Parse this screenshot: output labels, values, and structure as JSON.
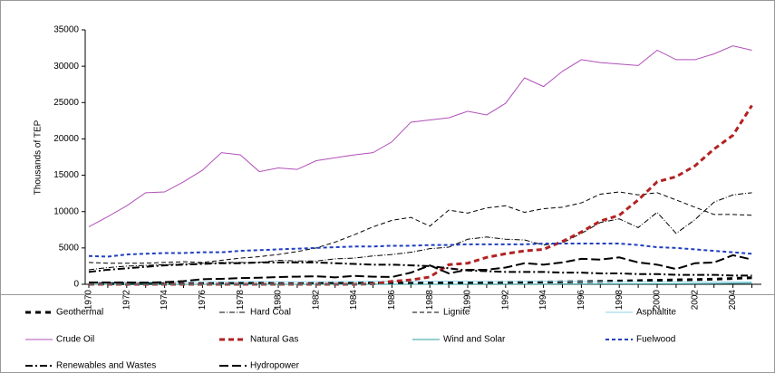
{
  "chart_data": {
    "type": "line",
    "y_label": "Thousands of TEP",
    "categories": [
      "1970",
      null,
      "1972",
      null,
      "1974",
      null,
      "1976",
      null,
      "1978",
      null,
      "1980",
      null,
      "1982",
      null,
      "1984",
      null,
      "1986",
      null,
      "1988",
      null,
      "1990",
      null,
      "1992",
      null,
      "1994",
      null,
      "1996",
      null,
      "1998",
      null,
      "2000",
      null,
      "2002",
      null,
      "2004",
      null
    ],
    "ylim": [
      0,
      35000
    ],
    "yticks": [
      0,
      5000,
      10000,
      15000,
      20000,
      25000,
      30000,
      35000
    ],
    "series": [
      {
        "name": "Geothermal",
        "color": "#000000",
        "width": 3,
        "dash": "6 5",
        "values": [
          50,
          60,
          70,
          80,
          90,
          100,
          110,
          120,
          130,
          140,
          150,
          160,
          170,
          180,
          190,
          200,
          210,
          220,
          230,
          240,
          250,
          260,
          280,
          300,
          320,
          340,
          360,
          400,
          450,
          500,
          550,
          600,
          650,
          700,
          800,
          900
        ]
      },
      {
        "name": "Hard Coal",
        "color": "#000000",
        "width": 1,
        "dash": "6 2 1 2",
        "values": [
          2000,
          2300,
          2500,
          2600,
          2700,
          2800,
          2900,
          3000,
          3000,
          3000,
          3300,
          3200,
          3200,
          3500,
          3600,
          3900,
          4100,
          4400,
          4900,
          5100,
          6200,
          6500,
          6200,
          6100,
          5400,
          5700,
          7000,
          8500,
          9000,
          7800,
          9900,
          7000,
          8900,
          11300,
          12300,
          12600
        ]
      },
      {
        "name": "Lignite",
        "color": "#000000",
        "width": 1,
        "dash": "5 3",
        "values": [
          3000,
          2900,
          2900,
          2900,
          3000,
          3100,
          3000,
          3300,
          3600,
          3800,
          4100,
          4500,
          5000,
          5800,
          6800,
          7900,
          8800,
          9200,
          8000,
          10200,
          9800,
          10500,
          10800,
          9900,
          10400,
          10600,
          11200,
          12400,
          12700,
          12300,
          12600,
          11600,
          10600,
          9600,
          9600,
          9500
        ]
      },
      {
        "name": "Asphaltite",
        "color": "#8fd3e8",
        "width": 1,
        "dash": "none",
        "values": [
          300,
          300,
          320,
          300,
          310,
          330,
          350,
          340,
          360,
          380,
          350,
          330,
          340,
          360,
          380,
          400,
          390,
          380,
          400,
          420,
          400,
          390,
          380,
          400,
          420,
          400,
          380,
          360,
          350,
          340,
          330,
          320,
          300,
          310,
          320,
          330
        ]
      },
      {
        "name": "Crude Oil",
        "color": "#b050b8",
        "width": 1,
        "dash": "none",
        "values": [
          7900,
          9300,
          10800,
          12600,
          12700,
          14100,
          15700,
          18100,
          17800,
          15500,
          16000,
          15800,
          17000,
          17400,
          17800,
          18100,
          19600,
          22300,
          22600,
          22900,
          23800,
          23300,
          24900,
          28400,
          27200,
          29300,
          30900,
          30500,
          30300,
          30100,
          32200,
          30900,
          30900,
          31700,
          32800,
          32200
        ]
      },
      {
        "name": "Natural Gas",
        "color": "#b22222",
        "width": 3,
        "dash": "6 4",
        "values": [
          0,
          0,
          0,
          0,
          0,
          0,
          0,
          0,
          0,
          0,
          0,
          0,
          0,
          0,
          0,
          50,
          400,
          600,
          1000,
          2700,
          2900,
          3700,
          4200,
          4600,
          4800,
          5900,
          7200,
          8700,
          9500,
          11600,
          14100,
          14800,
          16300,
          18600,
          20500,
          24600
        ]
      },
      {
        "name": "Wind and Solar",
        "color": "#2a9d9d",
        "width": 1,
        "dash": "none",
        "values": [
          0,
          0,
          0,
          0,
          0,
          0,
          0,
          0,
          0,
          0,
          0,
          0,
          0,
          0,
          0,
          0,
          0,
          0,
          0,
          0,
          10,
          10,
          20,
          20,
          20,
          30,
          30,
          40,
          40,
          50,
          60,
          70,
          80,
          100,
          120,
          150
        ]
      },
      {
        "name": "Fuelwood",
        "color": "#1f3fbf",
        "width": 2,
        "dash": "4 3",
        "values": [
          3900,
          3800,
          4100,
          4200,
          4300,
          4300,
          4400,
          4400,
          4600,
          4700,
          4800,
          4900,
          5000,
          5100,
          5200,
          5200,
          5300,
          5300,
          5400,
          5400,
          5500,
          5500,
          5500,
          5500,
          5600,
          5600,
          5600,
          5600,
          5600,
          5400,
          5100,
          5000,
          4800,
          4600,
          4400,
          4200
        ]
      },
      {
        "name": "Renewables and Wastes",
        "color": "#000000",
        "width": 2,
        "dash": "8 3 2 3",
        "values": [
          1700,
          2000,
          2200,
          2400,
          2600,
          2700,
          2800,
          2900,
          2900,
          3000,
          3000,
          3000,
          3000,
          2900,
          2800,
          2700,
          2700,
          2600,
          2500,
          2200,
          1900,
          1800,
          1700,
          1700,
          1700,
          1600,
          1600,
          1500,
          1500,
          1400,
          1400,
          1300,
          1300,
          1300,
          1200,
          1200
        ]
      },
      {
        "name": "Hydropower",
        "color": "#000000",
        "width": 2,
        "dash": "10 4",
        "values": [
          250,
          250,
          250,
          220,
          300,
          430,
          700,
          750,
          850,
          900,
          1000,
          1050,
          1100,
          950,
          1150,
          1050,
          1000,
          1600,
          2600,
          1500,
          2000,
          2000,
          2300,
          2900,
          2700,
          3000,
          3500,
          3400,
          3700,
          3000,
          2700,
          2100,
          2900,
          3000,
          4000,
          3400
        ]
      }
    ]
  }
}
